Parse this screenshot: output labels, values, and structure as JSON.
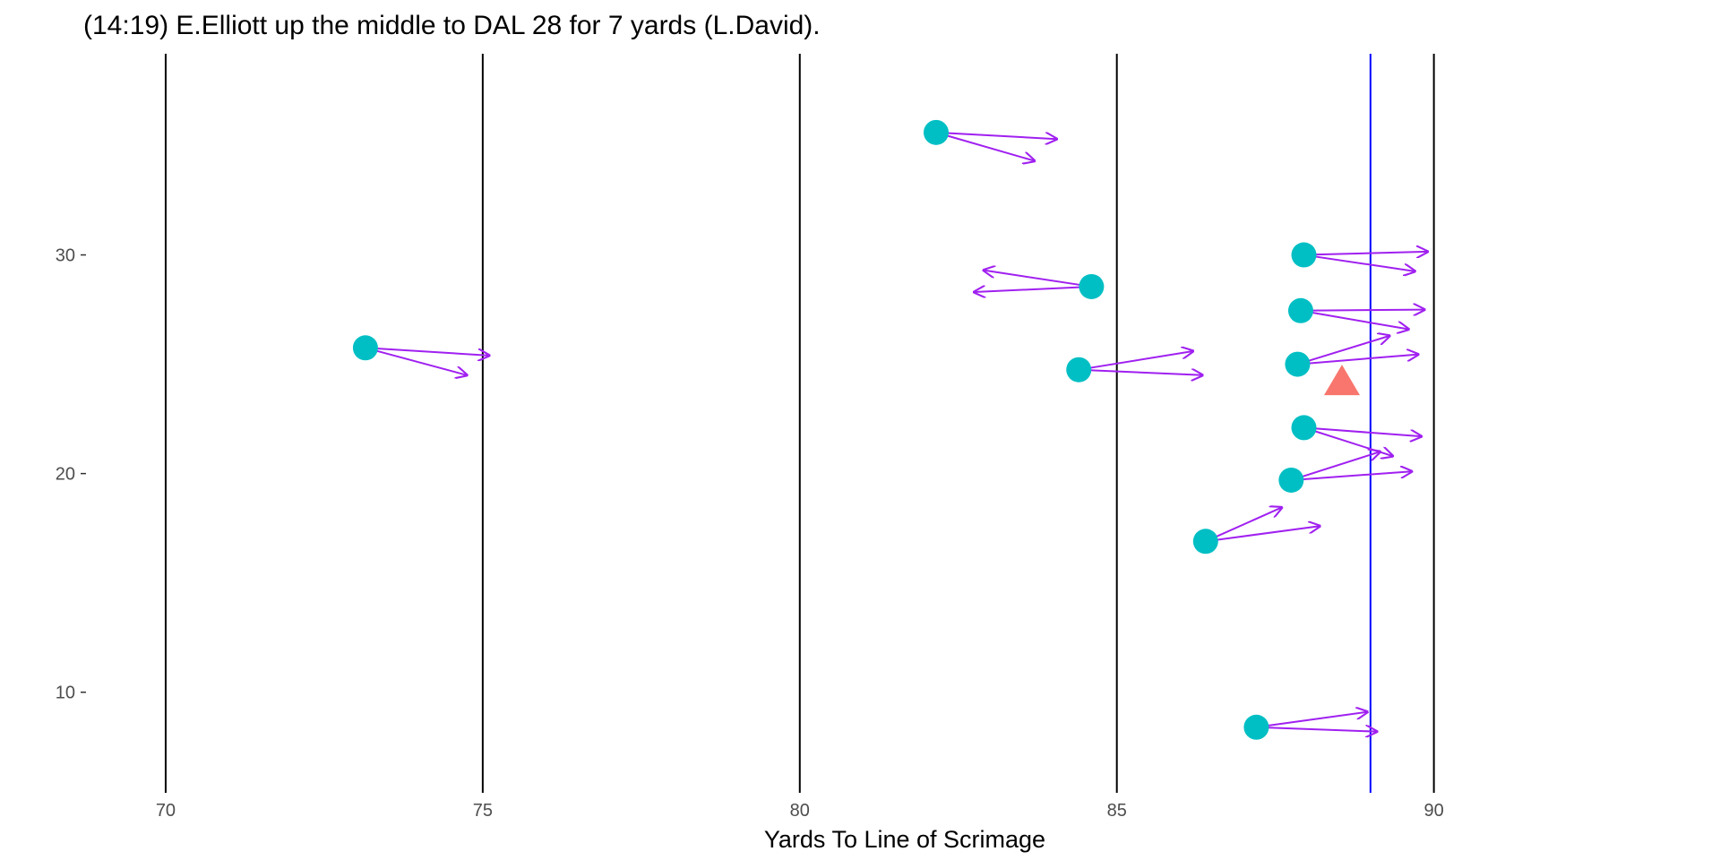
{
  "chart_data": {
    "type": "scatter",
    "title": "(14:19) E.Elliott up the middle to DAL 28 for 7 yards (L.David).",
    "xlabel": "Yards To Line of Scrimage",
    "ylabel": "",
    "xlim": [
      68.8,
      94.3
    ],
    "ylim": [
      5.4,
      39.2
    ],
    "x_ticks": [
      70,
      75,
      80,
      85,
      90
    ],
    "x_tick_labels": [
      "70",
      "75",
      "80",
      "85",
      "90"
    ],
    "y_ticks": [
      10,
      20,
      30
    ],
    "y_tick_labels": [
      "10",
      "20",
      "30"
    ],
    "grid": false,
    "legend": "none",
    "vertical_lines": [
      70,
      75,
      80,
      85,
      90
    ],
    "line_of_scrimmage": 89,
    "colors": {
      "player": "#00BFC4",
      "ball": "#F8766D",
      "arrow": "#A020F0",
      "yard_line": "#000000",
      "scrimmage_line": "#0000FF"
    },
    "players": [
      {
        "x": 73.15,
        "y": 25.75
      },
      {
        "x": 82.15,
        "y": 35.6
      },
      {
        "x": 84.6,
        "y": 28.55
      },
      {
        "x": 84.4,
        "y": 24.75
      },
      {
        "x": 87.95,
        "y": 30.0
      },
      {
        "x": 87.9,
        "y": 27.45
      },
      {
        "x": 87.85,
        "y": 25.0
      },
      {
        "x": 87.95,
        "y": 22.1
      },
      {
        "x": 87.75,
        "y": 19.7
      },
      {
        "x": 86.4,
        "y": 16.9
      },
      {
        "x": 87.2,
        "y": 8.4
      }
    ],
    "ball": {
      "x": 88.55,
      "y": 24.2
    },
    "arrows": [
      {
        "x0": 73.15,
        "y0": 25.75,
        "x1": 75.1,
        "y1": 25.4
      },
      {
        "x0": 73.15,
        "y0": 25.75,
        "x1": 74.75,
        "y1": 24.5
      },
      {
        "x0": 82.15,
        "y0": 35.6,
        "x1": 84.05,
        "y1": 35.3
      },
      {
        "x0": 82.15,
        "y0": 35.6,
        "x1": 83.7,
        "y1": 34.3
      },
      {
        "x0": 84.6,
        "y0": 28.55,
        "x1": 82.9,
        "y1": 29.3
      },
      {
        "x0": 84.6,
        "y0": 28.55,
        "x1": 82.75,
        "y1": 28.3
      },
      {
        "x0": 84.4,
        "y0": 24.75,
        "x1": 86.2,
        "y1": 25.6
      },
      {
        "x0": 84.4,
        "y0": 24.75,
        "x1": 86.35,
        "y1": 24.5
      },
      {
        "x0": 87.95,
        "y0": 30.0,
        "x1": 89.9,
        "y1": 30.15
      },
      {
        "x0": 87.95,
        "y0": 30.0,
        "x1": 89.7,
        "y1": 29.25
      },
      {
        "x0": 87.9,
        "y0": 27.45,
        "x1": 89.85,
        "y1": 27.5
      },
      {
        "x0": 87.9,
        "y0": 27.45,
        "x1": 89.6,
        "y1": 26.6
      },
      {
        "x0": 87.85,
        "y0": 25.0,
        "x1": 89.3,
        "y1": 26.3
      },
      {
        "x0": 87.85,
        "y0": 25.0,
        "x1": 89.75,
        "y1": 25.45
      },
      {
        "x0": 87.95,
        "y0": 22.1,
        "x1": 89.8,
        "y1": 21.7
      },
      {
        "x0": 87.95,
        "y0": 22.1,
        "x1": 89.35,
        "y1": 20.8
      },
      {
        "x0": 87.75,
        "y0": 19.7,
        "x1": 89.15,
        "y1": 21.0
      },
      {
        "x0": 87.75,
        "y0": 19.7,
        "x1": 89.65,
        "y1": 20.1
      },
      {
        "x0": 86.4,
        "y0": 16.9,
        "x1": 87.6,
        "y1": 18.45
      },
      {
        "x0": 86.4,
        "y0": 16.9,
        "x1": 88.2,
        "y1": 17.6
      },
      {
        "x0": 87.2,
        "y0": 8.4,
        "x1": 88.95,
        "y1": 9.1
      },
      {
        "x0": 87.2,
        "y0": 8.4,
        "x1": 89.1,
        "y1": 8.2
      }
    ]
  }
}
